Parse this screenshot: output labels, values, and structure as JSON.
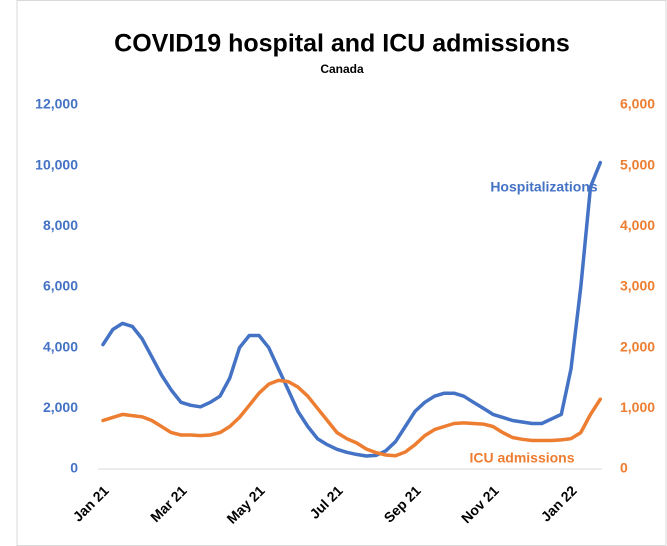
{
  "chart_data": {
    "type": "line",
    "title": "COVID19 hospital and ICU admissions",
    "subtitle": "Canada",
    "categories": [
      "Jan 21",
      null,
      null,
      null,
      null,
      null,
      null,
      null,
      "Mar 21",
      null,
      null,
      null,
      null,
      null,
      null,
      null,
      "May 21",
      null,
      null,
      null,
      null,
      null,
      null,
      null,
      "Jul 21",
      null,
      null,
      null,
      null,
      null,
      null,
      null,
      "Sep 21",
      null,
      null,
      null,
      null,
      null,
      null,
      null,
      "Nov 21",
      null,
      null,
      null,
      null,
      null,
      null,
      null,
      "Jan 22",
      null,
      null,
      null
    ],
    "series": [
      {
        "name": "Hospitalizations",
        "color": "#4472c4",
        "axis": "y",
        "values": [
          4100,
          4600,
          4800,
          4700,
          4300,
          3700,
          3100,
          2600,
          2200,
          2100,
          2050,
          2200,
          2400,
          3000,
          4000,
          4400,
          4400,
          4000,
          3300,
          2600,
          1900,
          1400,
          1000,
          800,
          650,
          550,
          480,
          430,
          450,
          600,
          900,
          1400,
          1900,
          2200,
          2400,
          2500,
          2500,
          2400,
          2200,
          2000,
          1800,
          1700,
          1600,
          1550,
          1500,
          1500,
          1650,
          1800,
          3300,
          6000,
          9300,
          10100
        ]
      },
      {
        "name": "ICU admissions",
        "color": "#ed7d31",
        "axis": "y2",
        "values": [
          800,
          850,
          900,
          880,
          860,
          800,
          700,
          600,
          560,
          560,
          550,
          560,
          600,
          700,
          850,
          1050,
          1250,
          1400,
          1460,
          1440,
          1350,
          1200,
          1000,
          800,
          600,
          500,
          430,
          330,
          270,
          230,
          220,
          280,
          400,
          550,
          650,
          700,
          750,
          760,
          750,
          740,
          700,
          600,
          520,
          490,
          470,
          470,
          470,
          480,
          500,
          600,
          900,
          1150
        ]
      }
    ],
    "ylim": [
      0,
      12000
    ],
    "yticks": [
      0,
      {
        "value": 2000,
        "label": "2,000"
      },
      {
        "value": 4000,
        "label": "4,000"
      },
      {
        "value": 6000,
        "label": "6,000"
      },
      {
        "value": 8000,
        "label": "8,000"
      },
      {
        "value": 10000,
        "label": "10,000"
      },
      {
        "value": 12000,
        "label": "12,000"
      }
    ],
    "y2lim": [
      0,
      6000
    ],
    "y2ticks": [
      0,
      {
        "value": 1000,
        "label": "1,000"
      },
      {
        "value": 2000,
        "label": "2,000"
      },
      {
        "value": 3000,
        "label": "3,000"
      },
      {
        "value": 4000,
        "label": "4,000"
      },
      {
        "value": 5000,
        "label": "5,000"
      },
      {
        "value": 6000,
        "label": "6,000"
      }
    ],
    "grid": false
  }
}
